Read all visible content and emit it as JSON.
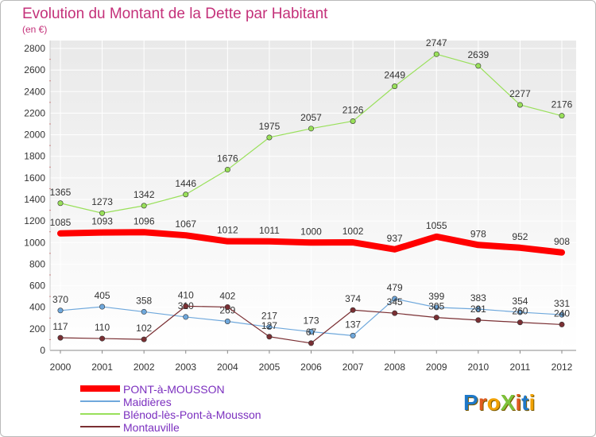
{
  "colors": {
    "title": "#c4317a",
    "background_top": "#ececec",
    "background_bottom": "#ffffff",
    "grid": "#ffffff",
    "legend_text": "#7b2fbf"
  },
  "logo": {
    "text": "ProXiti",
    "letters": [
      "P",
      "r",
      "o",
      "X",
      "i",
      "t",
      "i"
    ],
    "letter_colors": [
      "#1f78c8",
      "#e05a20",
      "#f0a000",
      "#7cc23a",
      "#e05a20",
      "#1f78c8",
      "#f0a000"
    ]
  },
  "chart_data": {
    "type": "line",
    "title": "Evolution du Montant de la Dette par Habitant",
    "subtitle": "(en €)",
    "xlabel": "",
    "ylabel": "",
    "x": [
      "2000",
      "2001",
      "2002",
      "2003",
      "2004",
      "2005",
      "2006",
      "2007",
      "2008",
      "2009",
      "2010",
      "2011",
      "2012"
    ],
    "ylim": [
      0,
      2800
    ],
    "yticks": [
      0,
      200,
      400,
      600,
      800,
      1000,
      1200,
      1400,
      1600,
      1800,
      2000,
      2200,
      2400,
      2600,
      2800
    ],
    "grid": true,
    "legend_position": "bottom-left",
    "series": [
      {
        "name": "PONT-à-MOUSSON",
        "color": "#ff0000",
        "values": [
          1085,
          1093,
          1096,
          1067,
          1012,
          1011,
          1000,
          1002,
          937,
          1055,
          978,
          952,
          908
        ]
      },
      {
        "name": "Maidières",
        "color": "#6fa8dc",
        "values": [
          370,
          405,
          358,
          310,
          269,
          217,
          173,
          137,
          479,
          399,
          383,
          354,
          331
        ]
      },
      {
        "name": "Blénod-lès-Pont-à-Mousson",
        "color": "#99e05a",
        "values": [
          1365,
          1273,
          1342,
          1446,
          1676,
          1975,
          2057,
          2126,
          2449,
          2747,
          2639,
          2277,
          2176
        ]
      },
      {
        "name": "Montauville",
        "color": "#7a2f33",
        "values": [
          117,
          110,
          102,
          410,
          402,
          127,
          67,
          374,
          345,
          305,
          281,
          260,
          240
        ]
      }
    ]
  }
}
